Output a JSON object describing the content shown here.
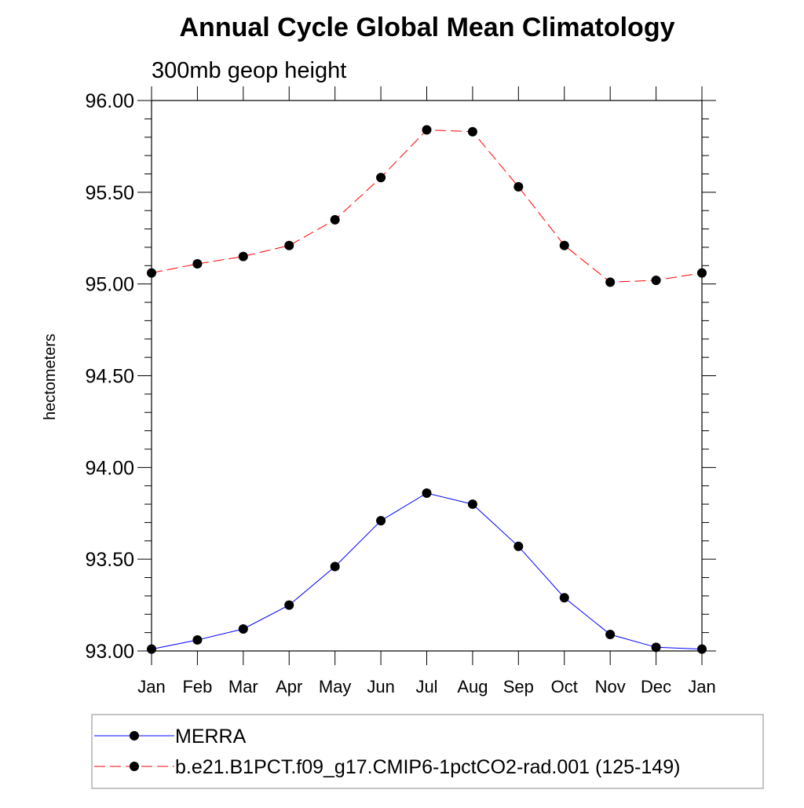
{
  "chart_data": {
    "type": "line",
    "title": "Annual Cycle Global Mean Climatology",
    "subtitle": "300mb geop height",
    "ylabel": "hectometers",
    "xlabel": "",
    "categories": [
      "Jan",
      "Feb",
      "Mar",
      "Apr",
      "May",
      "Jun",
      "Jul",
      "Aug",
      "Sep",
      "Oct",
      "Nov",
      "Dec",
      "Jan"
    ],
    "ylim": [
      93.0,
      96.0
    ],
    "yticks": [
      93.0,
      93.5,
      94.0,
      94.5,
      95.0,
      95.5,
      96.0
    ],
    "ytick_labels": [
      "93.00",
      "93.50",
      "94.00",
      "94.50",
      "95.00",
      "95.50",
      "96.00"
    ],
    "y_minor_step": 0.1,
    "grid": false,
    "legend_position": "bottom",
    "series": [
      {
        "name": "MERRA",
        "color": "#0000ff",
        "dash": "solid",
        "values": [
          93.01,
          93.06,
          93.12,
          93.25,
          93.46,
          93.71,
          93.86,
          93.8,
          93.57,
          93.29,
          93.09,
          93.02,
          93.01
        ]
      },
      {
        "name": "b.e21.B1PCT.f09_g17.CMIP6-1pctCO2-rad.001 (125-149)",
        "color": "#ff0000",
        "dash": "dashed",
        "values": [
          95.06,
          95.11,
          95.15,
          95.21,
          95.35,
          95.58,
          95.84,
          95.83,
          95.53,
          95.21,
          95.01,
          95.02,
          95.06
        ]
      }
    ]
  }
}
